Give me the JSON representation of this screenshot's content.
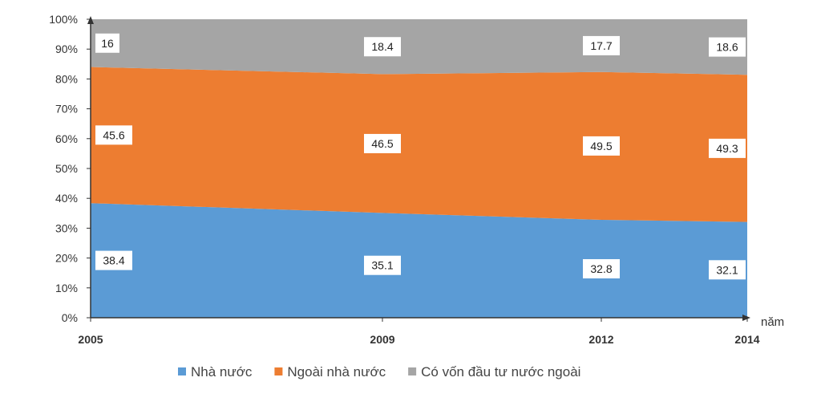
{
  "chart_data": {
    "type": "area",
    "stacked": true,
    "x": [
      "2005",
      "2009",
      "2012",
      "2014"
    ],
    "xlabel": "năm",
    "ylabel": "",
    "ylim": [
      0,
      100
    ],
    "yticks": [
      "0%",
      "10%",
      "20%",
      "30%",
      "40%",
      "50%",
      "60%",
      "70%",
      "80%",
      "90%",
      "100%"
    ],
    "grid": false,
    "legend_position": "bottom",
    "series": [
      {
        "name": "Nhà nước",
        "values": [
          38.4,
          35.1,
          32.8,
          32.1
        ],
        "color": "#5b9bd5"
      },
      {
        "name": "Ngoài nhà nước",
        "values": [
          45.6,
          46.5,
          49.5,
          49.3
        ],
        "color": "#ed7d31"
      },
      {
        "name": "Có vốn đầu tư nước ngoài",
        "values": [
          16,
          18.4,
          17.7,
          18.6
        ],
        "color": "#a5a5a5"
      }
    ]
  }
}
